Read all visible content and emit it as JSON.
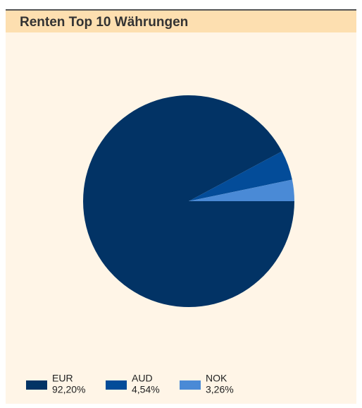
{
  "chart_data": {
    "type": "pie",
    "title": "Renten Top 10 Währungen",
    "categories": [
      "EUR",
      "AUD",
      "NOK"
    ],
    "values": [
      92.2,
      4.54,
      3.26
    ],
    "value_labels": [
      "92,20%",
      "4,54%",
      "3,26%"
    ],
    "colors": [
      "#023365",
      "#034c99",
      "#4a8ad6"
    ]
  }
}
